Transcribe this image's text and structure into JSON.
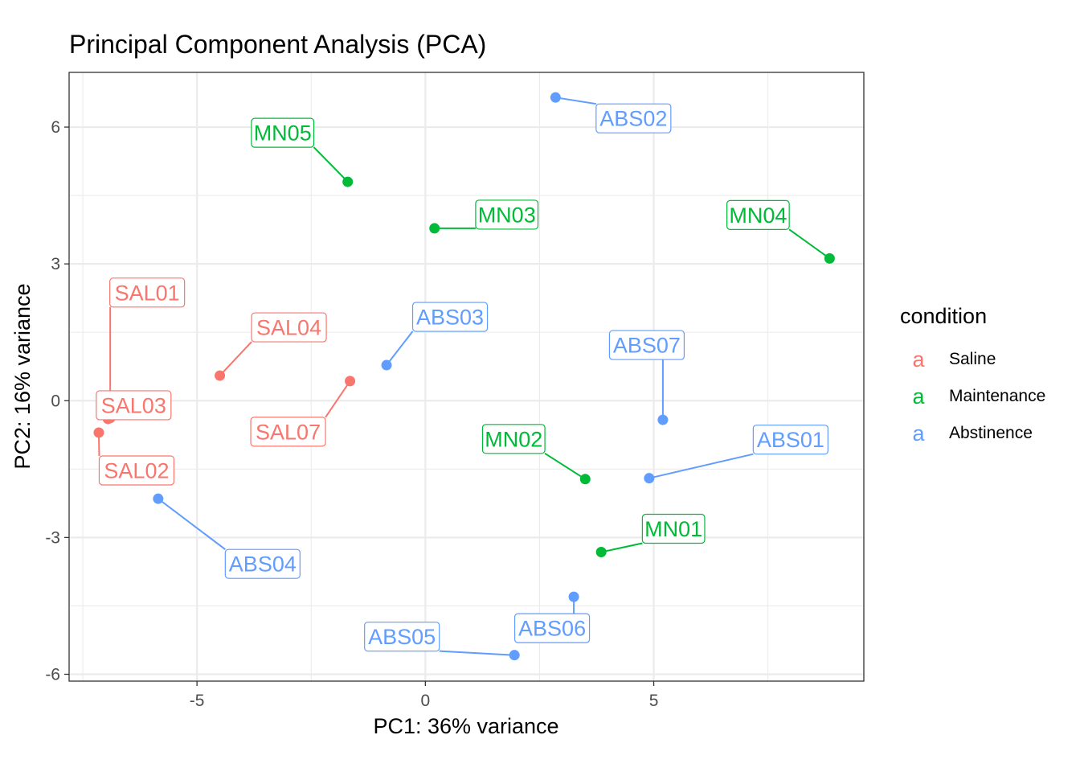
{
  "chart_data": {
    "type": "scatter",
    "title": "Principal Component Analysis (PCA)",
    "xlabel": "PC1: 36% variance",
    "ylabel": "PC2: 16% variance",
    "xlim": [
      -7.8,
      9.6
    ],
    "ylim": [
      -6.15,
      7.2
    ],
    "x_ticks": [
      -5,
      0,
      5
    ],
    "y_ticks": [
      -6,
      -3,
      0,
      3,
      6
    ],
    "x_tick_labels": [
      "-5",
      "0",
      "5"
    ],
    "y_tick_labels": [
      "-6",
      "-3",
      "0",
      "3",
      "6"
    ],
    "grid": true,
    "legend": {
      "title": "condition",
      "position": "right",
      "key_glyph": "a",
      "entries": [
        {
          "name": "Saline",
          "color": "#F8766D"
        },
        {
          "name": "Maintenance",
          "color": "#00BA38"
        },
        {
          "name": "Abstinence",
          "color": "#619CFF"
        }
      ]
    },
    "points": [
      {
        "label": "SAL01",
        "condition": "Saline",
        "x": -6.9,
        "y": -0.38
      },
      {
        "label": "SAL02",
        "condition": "Saline",
        "x": -7.15,
        "y": -0.7
      },
      {
        "label": "SAL03",
        "condition": "Saline",
        "x": -6.95,
        "y": -0.4
      },
      {
        "label": "SAL04",
        "condition": "Saline",
        "x": -4.5,
        "y": 0.55
      },
      {
        "label": "SAL07",
        "condition": "Saline",
        "x": -1.65,
        "y": 0.43
      },
      {
        "label": "MN01",
        "condition": "Maintenance",
        "x": 3.85,
        "y": -3.32
      },
      {
        "label": "MN02",
        "condition": "Maintenance",
        "x": 3.5,
        "y": -1.72
      },
      {
        "label": "MN03",
        "condition": "Maintenance",
        "x": 0.2,
        "y": 3.78
      },
      {
        "label": "MN04",
        "condition": "Maintenance",
        "x": 8.85,
        "y": 3.12
      },
      {
        "label": "MN05",
        "condition": "Maintenance",
        "x": -1.7,
        "y": 4.8
      },
      {
        "label": "ABS01",
        "condition": "Abstinence",
        "x": 4.9,
        "y": -1.7
      },
      {
        "label": "ABS02",
        "condition": "Abstinence",
        "x": 2.85,
        "y": 6.65
      },
      {
        "label": "ABS03",
        "condition": "Abstinence",
        "x": -0.85,
        "y": 0.78
      },
      {
        "label": "ABS04",
        "condition": "Abstinence",
        "x": -5.85,
        "y": -2.15
      },
      {
        "label": "ABS05",
        "condition": "Abstinence",
        "x": 1.95,
        "y": -5.58
      },
      {
        "label": "ABS06",
        "condition": "Abstinence",
        "x": 3.25,
        "y": -4.3
      },
      {
        "label": "ABS07",
        "condition": "Abstinence",
        "x": 5.2,
        "y": -0.42
      }
    ]
  }
}
